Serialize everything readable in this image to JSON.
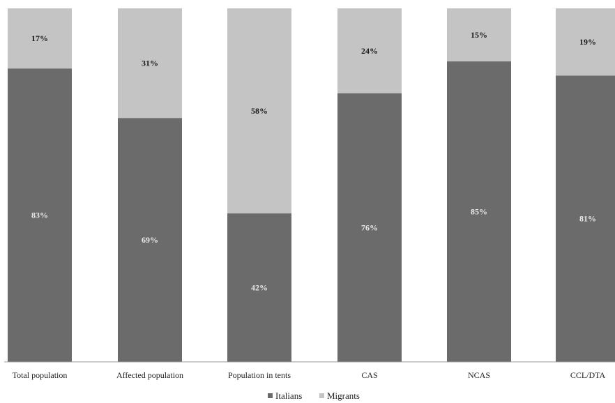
{
  "chart_data": {
    "type": "bar",
    "stacked": true,
    "percent": true,
    "categories": [
      "Total population",
      "Affected population",
      "Population in tents",
      "CAS",
      "NCAS",
      "CCL/DTA"
    ],
    "series": [
      {
        "name": "Italians",
        "values": [
          83,
          69,
          42,
          76,
          85,
          81
        ],
        "labels": [
          "83%",
          "69%",
          "42%",
          "76%",
          "85%",
          "81%"
        ],
        "color": "#6b6b6b"
      },
      {
        "name": "Migrants",
        "values": [
          17,
          31,
          58,
          24,
          15,
          19
        ],
        "labels": [
          "17%",
          "31%",
          "58%",
          "24%",
          "15%",
          "19%"
        ],
        "color": "#c4c4c4"
      }
    ],
    "ylim": [
      0,
      100
    ],
    "grid": false,
    "legend": "bottom-center",
    "label_colors": {
      "Italians": "#e8e8e8",
      "Migrants": "#1a1a1a"
    }
  }
}
